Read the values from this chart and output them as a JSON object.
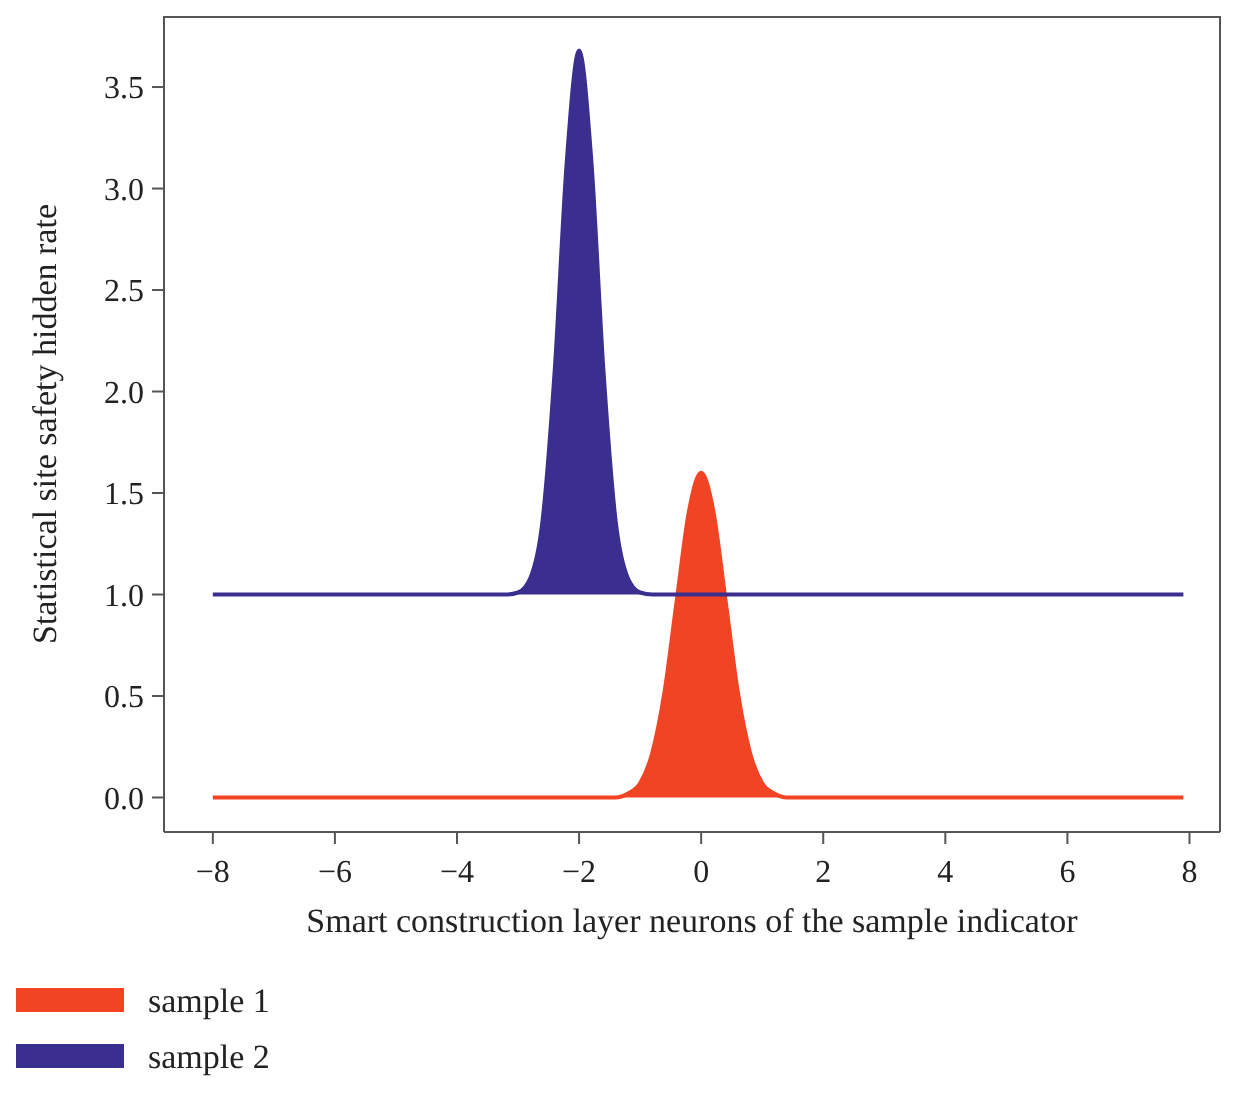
{
  "chart_data": {
    "type": "area",
    "xlabel": "Smart construction layer neurons of the sample indicator",
    "ylabel": "Statistical site safety hidden rate",
    "xlim": [
      -8.8,
      8.5
    ],
    "ylim": [
      -0.17,
      3.85
    ],
    "xticks": [
      {
        "value": -8,
        "label": "−8"
      },
      {
        "value": -6,
        "label": "−6"
      },
      {
        "value": -4,
        "label": "−4"
      },
      {
        "value": -2,
        "label": "−2"
      },
      0,
      2,
      4,
      6,
      8
    ],
    "yticks": [
      {
        "value": 0,
        "label": "0.0"
      },
      {
        "value": 0.5,
        "label": "0.5"
      },
      {
        "value": 1,
        "label": "1.0"
      },
      {
        "value": 1.5,
        "label": "1.5"
      },
      {
        "value": 2,
        "label": "2.0"
      },
      {
        "value": 2.5,
        "label": "2.5"
      },
      {
        "value": 3,
        "label": "3.0"
      },
      {
        "value": 3.5,
        "label": "3.5"
      }
    ],
    "legend": "bottom",
    "grid": false,
    "series": [
      {
        "name": "sample 1",
        "color": "#f04424",
        "x": [
          -8,
          -1.6,
          -1.4,
          -1.2,
          -1,
          -0.8,
          -0.6,
          -0.4,
          -0.2,
          0,
          0.2,
          0.4,
          0.6,
          0.8,
          1,
          1.2,
          1.4,
          1.6,
          7.9
        ],
        "values": [
          0,
          0,
          0,
          0.02,
          0.07,
          0.22,
          0.52,
          0.97,
          1.41,
          1.6,
          1.41,
          0.97,
          0.52,
          0.22,
          0.07,
          0.02,
          0,
          0,
          0
        ]
      },
      {
        "name": "sample 2",
        "color": "#3a2f8f",
        "x": [
          -8,
          -3.2,
          -3,
          -2.8,
          -2.6,
          -2.4,
          -2.2,
          -2,
          -1.8,
          -1.6,
          -1.4,
          -1.2,
          -1,
          -0.8,
          7.9
        ],
        "values": [
          1,
          1,
          1.01,
          1.08,
          1.36,
          2.1,
          3.14,
          3.68,
          3.14,
          2.1,
          1.36,
          1.08,
          1.01,
          1,
          1
        ]
      }
    ]
  }
}
